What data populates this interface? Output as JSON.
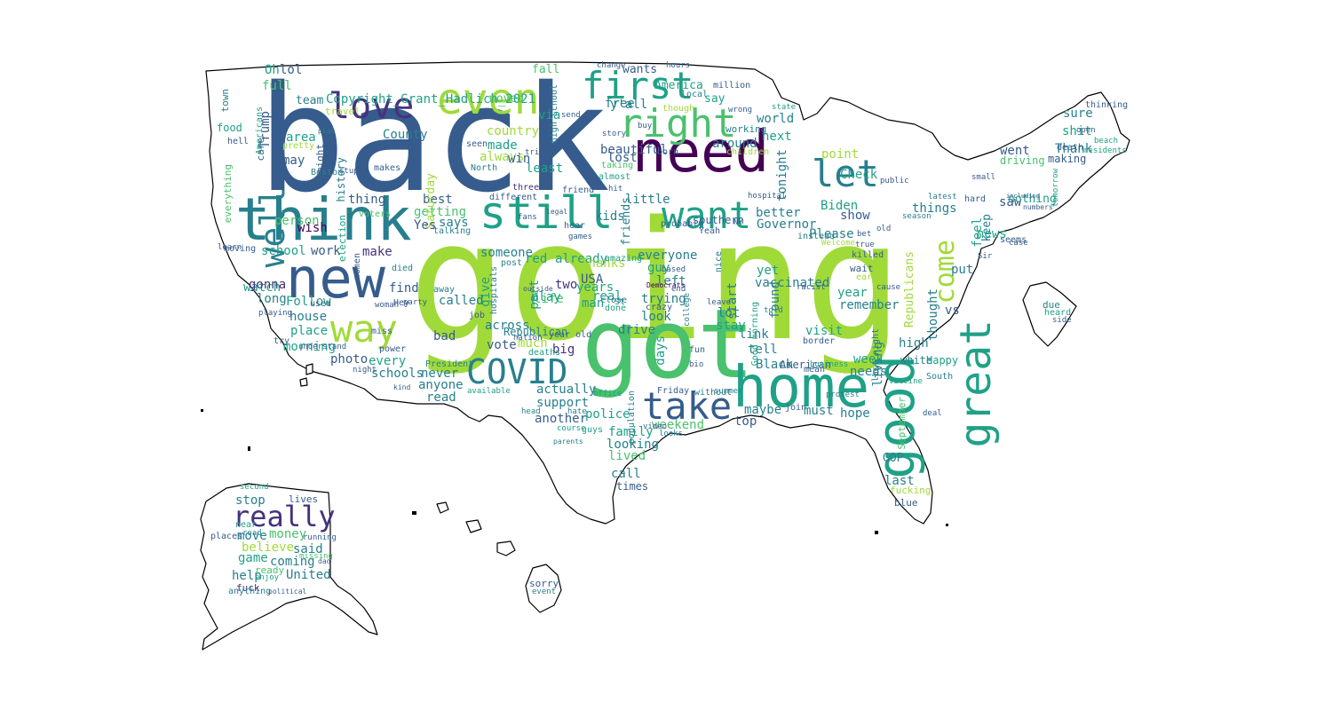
{
  "palette": [
    "#440154",
    "#46327e",
    "#365c8d",
    "#277f8e",
    "#1fa187",
    "#4ac16d",
    "#a0da39",
    "#fde725"
  ],
  "words": {
    "going": "going",
    "back": "back",
    "got": "got",
    "home": "home",
    "good": "good",
    "need": "need",
    "think": "think",
    "new": "new",
    "still": "still",
    "want": "want",
    "even": "even",
    "first": "first",
    "right": "right",
    "love": "love",
    "well": "well",
    "let": "let",
    "great": "great",
    "come": "come",
    "way": "way",
    "take": "take",
    "covid": "COVID",
    "really": "really",
    "copyright": "Copyright_Grant_Hadlich_2021",
    "trump": "Trump",
    "oh": "Oh",
    "lol": "lol",
    "full": "full",
    "team": "team",
    "travel": "travel",
    "america": "America",
    "free": "free",
    "yall": "y'all",
    "fall": "fall",
    "wants": "wants",
    "say": "say",
    "via": "via",
    "moved": "moved",
    "world": "world",
    "next": "next",
    "around": "around",
    "beautiful": "beautiful",
    "lost": "lost",
    "county": "County",
    "country": "country",
    "area": "area",
    "may": "may",
    "history": "history",
    "made": "made",
    "always": "always",
    "win": "win",
    "least": "least",
    "person": "person",
    "school": "school",
    "thing": "thing",
    "best": "best",
    "getting": "getting",
    "saturday": "Saturday",
    "says": "says",
    "yes": "Yes",
    "kids": "kids",
    "little": "little",
    "friends": "friends",
    "better": "better",
    "governor": "Governor",
    "biden": "Biden",
    "please": "Please",
    "show": "show",
    "check": "Check",
    "point": "point",
    "tonight": "tonight",
    "thank": "Thank",
    "went": "went",
    "saw": "saw",
    "nothing": "nothing",
    "things": "things",
    "feel": "feel",
    "keep": "keep",
    "news": "news",
    "sure": "sure",
    "shit": "shit",
    "driving": "driving",
    "making": "making",
    "work": "work",
    "make": "make",
    "watch": "watch",
    "long": "long",
    "gonna": "gonna",
    "find": "find",
    "follow": "Follow",
    "house": "house",
    "place": "place",
    "morning": "morning",
    "photo": "photo",
    "every": "every",
    "schools": "schools",
    "never": "never",
    "anyone": "anyone",
    "read": "read",
    "someone": "someone",
    "red": "red",
    "already": "already",
    "usa": "USA",
    "thanks": "Thanks",
    "man": "man",
    "real": "real",
    "years": "years",
    "two": "two",
    "life": "life",
    "play": "play",
    "called": "called",
    "bad": "bad",
    "across": "across",
    "vote": "vote",
    "much": "much",
    "big": "big",
    "republican": "Republican",
    "part": "part",
    "give": "give",
    "everyone": "everyone",
    "guy": "guy",
    "left": "left",
    "trying": "trying",
    "look": "look",
    "days": "days",
    "drive": "drive",
    "actually": "actually",
    "support": "support",
    "another": "another",
    "police": "police",
    "family": "family",
    "looking": "looking",
    "lived": "lived",
    "call": "call",
    "times": "times",
    "weekend": "weekend",
    "maybe": "maybe",
    "top": "top",
    "must": "must",
    "hope": "hope",
    "link": "link",
    "tell": "tell",
    "stay": "stay",
    "lot": "lot",
    "start": "start",
    "found": "found",
    "visit": "visit",
    "vaccinated": "vaccinated",
    "yet": "yet",
    "black": "Black",
    "american": "American",
    "week": "week",
    "needs": "needs",
    "living": "living",
    "remember": "remember",
    "year": "year",
    "high": "high",
    "thought": "thought",
    "put": "put",
    "vs": "vs",
    "republicans": "Republicans",
    "white": "white",
    "happy": "Happy",
    "gop": "GOP",
    "last": "last",
    "fucking": "fucking",
    "blue": "blue",
    "september": "September",
    "stop": "stop",
    "believe": "believe",
    "money": "money",
    "said": "said",
    "coming": "coming",
    "united": "United",
    "help": "help",
    "game": "game",
    "move": "move",
    "lives": "lives",
    "ready": "ready",
    "fuck": "fuck",
    "sorry": "sorry",
    "due": "due",
    "heard": "heard",
    "event": "event",
    "side": "side",
    "enjoy": "enjoy",
    "places": "places",
    "near": "near",
    "road": "road",
    "woman": "woman",
    "women": "women",
    "wish": "wish",
    "election": "election",
    "care": "care",
    "americans": "Americans",
    "everything": "everything",
    "food": "food",
    "hell": "hell",
    "town": "town",
    "million": "million",
    "local": "local",
    "though": "though",
    "working": "working",
    "children": "children",
    "southern": "southern",
    "friday": "Friday",
    "without": "without",
    "president": "President",
    "deaths": "deaths",
    "hospitals": "hospitals",
    "job": "job",
    "post": "post",
    "friend": "friend",
    "probably": "probably",
    "instead": "instead",
    "wait": "wait",
    "killed": "killed",
    "early": "early",
    "seems": "seems",
    "latest": "latest",
    "case": "case",
    "open": "open",
    "beach": "beach",
    "death": "death",
    "thinking": "thinking",
    "residents": "residents",
    "stupid": "stupid",
    "boston": "Boston",
    "trip": "trip",
    "seen": "seen",
    "hours": "hours",
    "change": "change",
    "send": "send",
    "story": "story",
    "born": "born",
    "hit": "hit",
    "almost": "almost",
    "taking": "taking",
    "three": "three",
    "north": "North",
    "makes": "makes",
    "might": "might",
    "pretty": "pretty",
    "plan": "plan",
    "true": "true",
    "old": "old",
    "season": "season",
    "hospital": "hospital",
    "based": "based",
    "democrats": "Democrats",
    "yeah": "Yeah",
    "nice": "nice",
    "college": "college",
    "end": "end",
    "leave": "leave",
    "told": "told",
    "summer": "summer",
    "fun": "fun",
    "bio": "bio",
    "border": "border",
    "mean": "mean",
    "business": "business",
    "welcome": "Welcome",
    "voters": "voters",
    "died": "died",
    "used": "used",
    "hey": "Hey",
    "try": "try",
    "understand": "understand",
    "miss": "miss",
    "night": "night",
    "learn": "learn",
    "moving": "moving",
    "playing": "playing",
    "vaccine": "vaccine",
    "south": "South",
    "good_morning": "Good morning",
    "last_night": "last night",
    "high_school": "high school",
    "year_old": "year old",
    "st": "St",
    "done": "done",
    "close": "close",
    "outside": "outside",
    "fans": "fans",
    "talking": "talking",
    "amazing": "amazing",
    "office": "office",
    "population": "population",
    "video": "video",
    "guys": "guys",
    "looks": "looks",
    "course": "course",
    "head": "head",
    "hate": "hate",
    "join": "join",
    "protest": "protest",
    "racist": "racist",
    "crazy": "crazy",
    "bet": "bet",
    "cause": "cause",
    "hard": "hard",
    "nation": "nation",
    "power": "power",
    "party": "party",
    "away": "away",
    "available": "available",
    "ny": "NY",
    "sir": "Sir",
    "dad": "dad",
    "missing": "missing",
    "anything": "anything",
    "political": "political",
    "running": "running",
    "small": "small",
    "numbers": "numbers",
    "including": "including",
    "tomorrow": "tomorrow",
    "parents": "parents",
    "kind": "kind",
    "wrong": "wrong",
    "buy": "buy",
    "state": "state",
    "public": "public",
    "hear": "hear",
    "games": "games",
    "legal": "legal",
    "different": "different",
    "deal": "deal",
    "second": "second",
    "least2": "least"
  }
}
